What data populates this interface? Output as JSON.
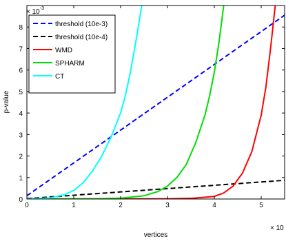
{
  "chart_data": {
    "type": "line",
    "xlabel": "vertices",
    "ylabel": "p-value",
    "x_exponent_label": "× 10",
    "y_exponent_label": "× 10",
    "y_exponent_power": "-3",
    "xlim": [
      0,
      5.5
    ],
    "ylim": [
      0,
      9
    ],
    "x_ticks": [
      "0",
      "1",
      "2",
      "3",
      "4",
      "5"
    ],
    "y_ticks": [
      "0",
      "1",
      "2",
      "3",
      "4",
      "5",
      "6",
      "7",
      "8"
    ],
    "grid": false,
    "legend_position": "top-left",
    "series": [
      {
        "name": "threshold (10e-3)",
        "color": "#0000ff",
        "style": "dashed",
        "x": [
          0,
          5.5
        ],
        "y": [
          0.15,
          8.55
        ]
      },
      {
        "name": "threshold (10e-4)",
        "color": "#000000",
        "style": "dashed",
        "x": [
          0,
          5.5
        ],
        "y": [
          0.02,
          0.87
        ]
      },
      {
        "name": "WMD",
        "color": "#ff0000",
        "style": "solid",
        "x": [
          0,
          3.0,
          3.5,
          4.0,
          4.2,
          4.4,
          4.6,
          4.8,
          5.0,
          5.1,
          5.2,
          5.3
        ],
        "y": [
          0,
          0.01,
          0.03,
          0.12,
          0.28,
          0.6,
          1.2,
          2.2,
          3.9,
          5.2,
          7.0,
          9.0
        ]
      },
      {
        "name": "SPHARM",
        "color": "#00dd00",
        "style": "solid",
        "x": [
          0,
          1.5,
          2.0,
          2.5,
          2.8,
          3.0,
          3.2,
          3.4,
          3.6,
          3.8,
          3.9,
          4.0,
          4.1,
          4.2
        ],
        "y": [
          0,
          0.01,
          0.04,
          0.15,
          0.35,
          0.6,
          1.0,
          1.6,
          2.6,
          3.9,
          4.8,
          5.9,
          7.3,
          9.0
        ]
      },
      {
        "name": "CT",
        "color": "#00ffff",
        "style": "solid",
        "x": [
          0,
          0.5,
          0.8,
          1.0,
          1.2,
          1.4,
          1.6,
          1.8,
          2.0,
          2.1,
          2.2,
          2.3,
          2.4,
          2.45
        ],
        "y": [
          0,
          0.05,
          0.2,
          0.4,
          0.75,
          1.3,
          2.0,
          2.9,
          4.0,
          4.8,
          5.8,
          7.0,
          8.3,
          9.0
        ]
      }
    ]
  }
}
